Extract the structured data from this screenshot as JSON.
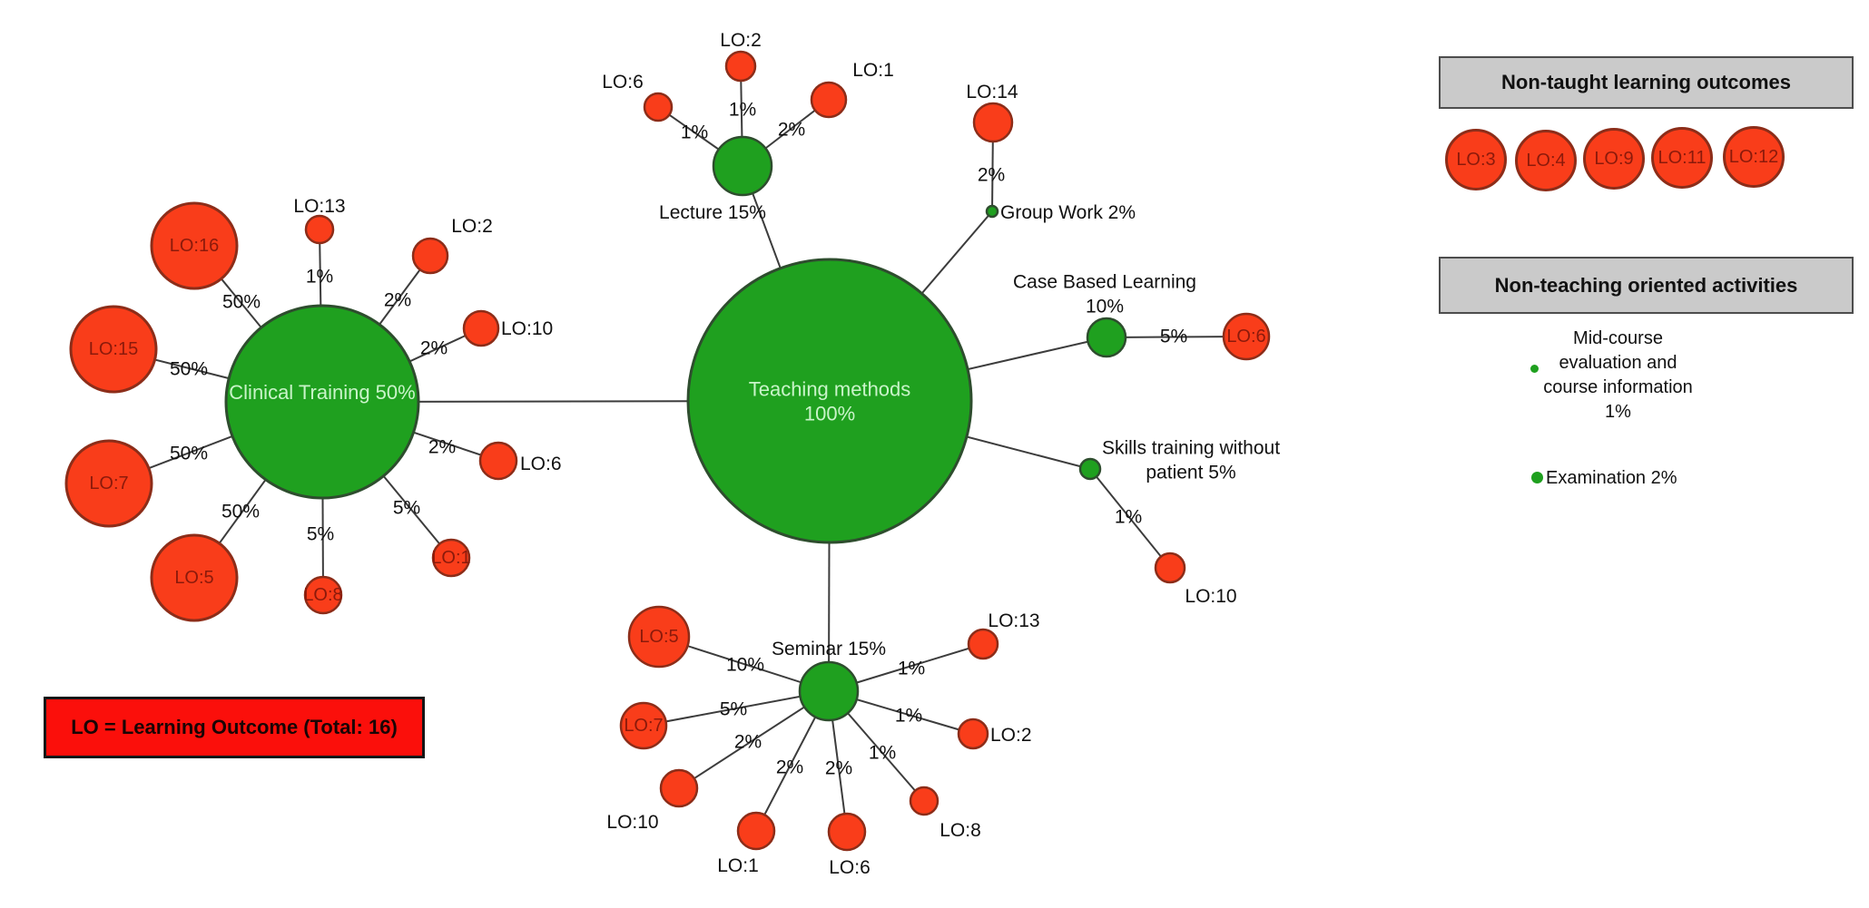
{
  "colors": {
    "hub_green": "#1FA01F",
    "hub_border": "#2E4D2E",
    "hub_text": "#C9F4C9",
    "leaf_red": "#F93D1A",
    "leaf_border": "#8C2D19",
    "leaf_text": "#8B1A0B",
    "edge": "#3C3C3C",
    "text": "#111111",
    "panel_grey": "#CACACA",
    "legend_red": "#FB0F0B"
  },
  "diagram": {
    "nodes": [
      {
        "id": "teaching",
        "type": "hub",
        "label": "Teaching methods\n100%"
      },
      {
        "id": "clinical",
        "type": "hub",
        "label": "Clinical Training 50%"
      },
      {
        "id": "lecture",
        "type": "hub",
        "label": "Lecture 15%"
      },
      {
        "id": "seminar",
        "type": "hub",
        "label": "Seminar 15%"
      },
      {
        "id": "groupwork",
        "type": "hub",
        "label": "Group Work 2%"
      },
      {
        "id": "cbl",
        "type": "hub",
        "label": "Case Based Learning\n10%"
      },
      {
        "id": "skills",
        "type": "hub",
        "label": "Skills training without\npatient 5%"
      },
      {
        "id": "ct_lo16",
        "type": "leaf",
        "label": "LO:16"
      },
      {
        "id": "ct_lo13",
        "type": "leaf",
        "label": "LO:13"
      },
      {
        "id": "ct_lo2",
        "type": "leaf",
        "label": "LO:2"
      },
      {
        "id": "ct_lo10",
        "type": "leaf",
        "label": "LO:10"
      },
      {
        "id": "ct_lo6",
        "type": "leaf",
        "label": "LO:6"
      },
      {
        "id": "ct_lo1",
        "type": "leaf",
        "label": "LO:1"
      },
      {
        "id": "ct_lo8",
        "type": "leaf",
        "label": "LO:8"
      },
      {
        "id": "ct_lo5",
        "type": "leaf",
        "label": "LO:5"
      },
      {
        "id": "ct_lo7",
        "type": "leaf",
        "label": "LO:7"
      },
      {
        "id": "ct_lo15",
        "type": "leaf",
        "label": "LO:15"
      },
      {
        "id": "lec_lo6",
        "type": "leaf",
        "label": "LO:6"
      },
      {
        "id": "lec_lo2",
        "type": "leaf",
        "label": "LO:2"
      },
      {
        "id": "lec_lo1",
        "type": "leaf",
        "label": "LO:1"
      },
      {
        "id": "gw_lo14",
        "type": "leaf",
        "label": "LO:14"
      },
      {
        "id": "cbl_lo6",
        "type": "leaf",
        "label": "LO:6"
      },
      {
        "id": "sk_lo10",
        "type": "leaf",
        "label": "LO:10"
      },
      {
        "id": "sem_lo5",
        "type": "leaf",
        "label": "LO:5"
      },
      {
        "id": "sem_lo7",
        "type": "leaf",
        "label": "LO:7"
      },
      {
        "id": "sem_lo10",
        "type": "leaf",
        "label": "LO:10"
      },
      {
        "id": "sem_lo1",
        "type": "leaf",
        "label": "LO:1"
      },
      {
        "id": "sem_lo6",
        "type": "leaf",
        "label": "LO:6"
      },
      {
        "id": "sem_lo8",
        "type": "leaf",
        "label": "LO:8"
      },
      {
        "id": "sem_lo2",
        "type": "leaf",
        "label": "LO:2"
      },
      {
        "id": "sem_lo13",
        "type": "leaf",
        "label": "LO:13"
      }
    ],
    "edges": [
      {
        "from": "teaching",
        "to": "clinical",
        "label": ""
      },
      {
        "from": "teaching",
        "to": "lecture",
        "label": ""
      },
      {
        "from": "teaching",
        "to": "groupwork",
        "label": ""
      },
      {
        "from": "teaching",
        "to": "cbl",
        "label": ""
      },
      {
        "from": "teaching",
        "to": "skills",
        "label": ""
      },
      {
        "from": "teaching",
        "to": "seminar",
        "label": ""
      },
      {
        "from": "clinical",
        "to": "ct_lo16",
        "label": "50%"
      },
      {
        "from": "clinical",
        "to": "ct_lo15",
        "label": "50%"
      },
      {
        "from": "clinical",
        "to": "ct_lo7",
        "label": "50%"
      },
      {
        "from": "clinical",
        "to": "ct_lo5",
        "label": "50%"
      },
      {
        "from": "clinical",
        "to": "ct_lo13",
        "label": "1%"
      },
      {
        "from": "clinical",
        "to": "ct_lo2",
        "label": "2%"
      },
      {
        "from": "clinical",
        "to": "ct_lo10",
        "label": "2%"
      },
      {
        "from": "clinical",
        "to": "ct_lo6",
        "label": "2%"
      },
      {
        "from": "clinical",
        "to": "ct_lo1",
        "label": "5%"
      },
      {
        "from": "clinical",
        "to": "ct_lo8",
        "label": "5%"
      },
      {
        "from": "lecture",
        "to": "lec_lo6",
        "label": "1%"
      },
      {
        "from": "lecture",
        "to": "lec_lo2",
        "label": "1%"
      },
      {
        "from": "lecture",
        "to": "lec_lo1",
        "label": "2%"
      },
      {
        "from": "groupwork",
        "to": "gw_lo14",
        "label": "2%"
      },
      {
        "from": "cbl",
        "to": "cbl_lo6",
        "label": "5%"
      },
      {
        "from": "skills",
        "to": "sk_lo10",
        "label": "1%"
      },
      {
        "from": "seminar",
        "to": "sem_lo5",
        "label": "10%"
      },
      {
        "from": "seminar",
        "to": "sem_lo7",
        "label": "5%"
      },
      {
        "from": "seminar",
        "to": "sem_lo10",
        "label": "2%"
      },
      {
        "from": "seminar",
        "to": "sem_lo1",
        "label": "2%"
      },
      {
        "from": "seminar",
        "to": "sem_lo6",
        "label": "2%"
      },
      {
        "from": "seminar",
        "to": "sem_lo8",
        "label": "1%"
      },
      {
        "from": "seminar",
        "to": "sem_lo2",
        "label": "1%"
      },
      {
        "from": "seminar",
        "to": "sem_lo13",
        "label": "1%"
      }
    ]
  },
  "panels": {
    "non_taught": {
      "title": "Non-taught learning outcomes",
      "items": [
        "LO:3",
        "LO:4",
        "LO:9",
        "LO:11",
        "LO:12"
      ]
    },
    "non_teaching": {
      "title": "Non-teaching oriented activities",
      "mid_course": "Mid-course\nevaluation and\ncourse information\n1%",
      "examination": "Examination 2%"
    }
  },
  "legend": {
    "text": "LO = Learning Outcome (Total: 16)"
  }
}
